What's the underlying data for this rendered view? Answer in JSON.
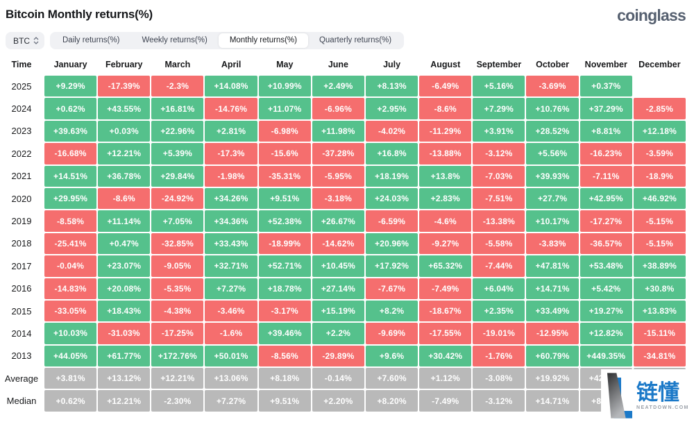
{
  "header": {
    "title": "Bitcoin Monthly returns(%)",
    "brand": "coinglass"
  },
  "toolbar": {
    "symbol_select": {
      "value": "BTC"
    },
    "tabs": [
      {
        "label": "Daily returns(%)",
        "active": false
      },
      {
        "label": "Weekly returns(%)",
        "active": false
      },
      {
        "label": "Monthly returns(%)",
        "active": true
      },
      {
        "label": "Quarterly returns(%)",
        "active": false
      }
    ]
  },
  "table": {
    "columns": [
      "Time",
      "January",
      "February",
      "March",
      "April",
      "May",
      "June",
      "July",
      "August",
      "September",
      "October",
      "November",
      "December"
    ],
    "rows": [
      {
        "label": "2025",
        "type": "year",
        "values": [
          "+9.29%",
          "-17.39%",
          "-2.3%",
          "+14.08%",
          "+10.99%",
          "+2.49%",
          "+8.13%",
          "-6.49%",
          "+5.16%",
          "-3.69%",
          "+0.37%",
          ""
        ]
      },
      {
        "label": "2024",
        "type": "year",
        "values": [
          "+0.62%",
          "+43.55%",
          "+16.81%",
          "-14.76%",
          "+11.07%",
          "-6.96%",
          "+2.95%",
          "-8.6%",
          "+7.29%",
          "+10.76%",
          "+37.29%",
          "-2.85%"
        ]
      },
      {
        "label": "2023",
        "type": "year",
        "values": [
          "+39.63%",
          "+0.03%",
          "+22.96%",
          "+2.81%",
          "-6.98%",
          "+11.98%",
          "-4.02%",
          "-11.29%",
          "+3.91%",
          "+28.52%",
          "+8.81%",
          "+12.18%"
        ]
      },
      {
        "label": "2022",
        "type": "year",
        "values": [
          "-16.68%",
          "+12.21%",
          "+5.39%",
          "-17.3%",
          "-15.6%",
          "-37.28%",
          "+16.8%",
          "-13.88%",
          "-3.12%",
          "+5.56%",
          "-16.23%",
          "-3.59%"
        ]
      },
      {
        "label": "2021",
        "type": "year",
        "values": [
          "+14.51%",
          "+36.78%",
          "+29.84%",
          "-1.98%",
          "-35.31%",
          "-5.95%",
          "+18.19%",
          "+13.8%",
          "-7.03%",
          "+39.93%",
          "-7.11%",
          "-18.9%"
        ]
      },
      {
        "label": "2020",
        "type": "year",
        "values": [
          "+29.95%",
          "-8.6%",
          "-24.92%",
          "+34.26%",
          "+9.51%",
          "-3.18%",
          "+24.03%",
          "+2.83%",
          "-7.51%",
          "+27.7%",
          "+42.95%",
          "+46.92%"
        ]
      },
      {
        "label": "2019",
        "type": "year",
        "values": [
          "-8.58%",
          "+11.14%",
          "+7.05%",
          "+34.36%",
          "+52.38%",
          "+26.67%",
          "-6.59%",
          "-4.6%",
          "-13.38%",
          "+10.17%",
          "-17.27%",
          "-5.15%"
        ]
      },
      {
        "label": "2018",
        "type": "year",
        "values": [
          "-25.41%",
          "+0.47%",
          "-32.85%",
          "+33.43%",
          "-18.99%",
          "-14.62%",
          "+20.96%",
          "-9.27%",
          "-5.58%",
          "-3.83%",
          "-36.57%",
          "-5.15%"
        ]
      },
      {
        "label": "2017",
        "type": "year",
        "values": [
          "-0.04%",
          "+23.07%",
          "-9.05%",
          "+32.71%",
          "+52.71%",
          "+10.45%",
          "+17.92%",
          "+65.32%",
          "-7.44%",
          "+47.81%",
          "+53.48%",
          "+38.89%"
        ]
      },
      {
        "label": "2016",
        "type": "year",
        "values": [
          "-14.83%",
          "+20.08%",
          "-5.35%",
          "+7.27%",
          "+18.78%",
          "+27.14%",
          "-7.67%",
          "-7.49%",
          "+6.04%",
          "+14.71%",
          "+5.42%",
          "+30.8%"
        ]
      },
      {
        "label": "2015",
        "type": "year",
        "values": [
          "-33.05%",
          "+18.43%",
          "-4.38%",
          "-3.46%",
          "-3.17%",
          "+15.19%",
          "+8.2%",
          "-18.67%",
          "+2.35%",
          "+33.49%",
          "+19.27%",
          "+13.83%"
        ]
      },
      {
        "label": "2014",
        "type": "year",
        "values": [
          "+10.03%",
          "-31.03%",
          "-17.25%",
          "-1.6%",
          "+39.46%",
          "+2.2%",
          "-9.69%",
          "-17.55%",
          "-19.01%",
          "-12.95%",
          "+12.82%",
          "-15.11%"
        ]
      },
      {
        "label": "2013",
        "type": "year",
        "values": [
          "+44.05%",
          "+61.77%",
          "+172.76%",
          "+50.01%",
          "-8.56%",
          "-29.89%",
          "+9.6%",
          "+30.42%",
          "-1.76%",
          "+60.79%",
          "+449.35%",
          "-34.81%"
        ]
      },
      {
        "label": "Average",
        "type": "summary",
        "values": [
          "+3.81%",
          "+13.12%",
          "+12.21%",
          "+13.06%",
          "+8.18%",
          "-0.14%",
          "+7.60%",
          "+1.12%",
          "-3.08%",
          "+19.92%",
          "+42.51%",
          ""
        ]
      },
      {
        "label": "Median",
        "type": "summary",
        "values": [
          "+0.62%",
          "+12.21%",
          "-2.30%",
          "+7.27%",
          "+9.51%",
          "+2.20%",
          "+8.20%",
          "-7.49%",
          "-3.12%",
          "+14.71%",
          "+8.81%",
          ""
        ]
      }
    ]
  },
  "watermark": {
    "cjk": "链懂",
    "domain": "NEATDOWN.COM"
  },
  "colors": {
    "positive": "#55c18c",
    "negative": "#f56e6e",
    "neutral": "#b9b9b9",
    "brand_blue": "#1b79c8"
  }
}
